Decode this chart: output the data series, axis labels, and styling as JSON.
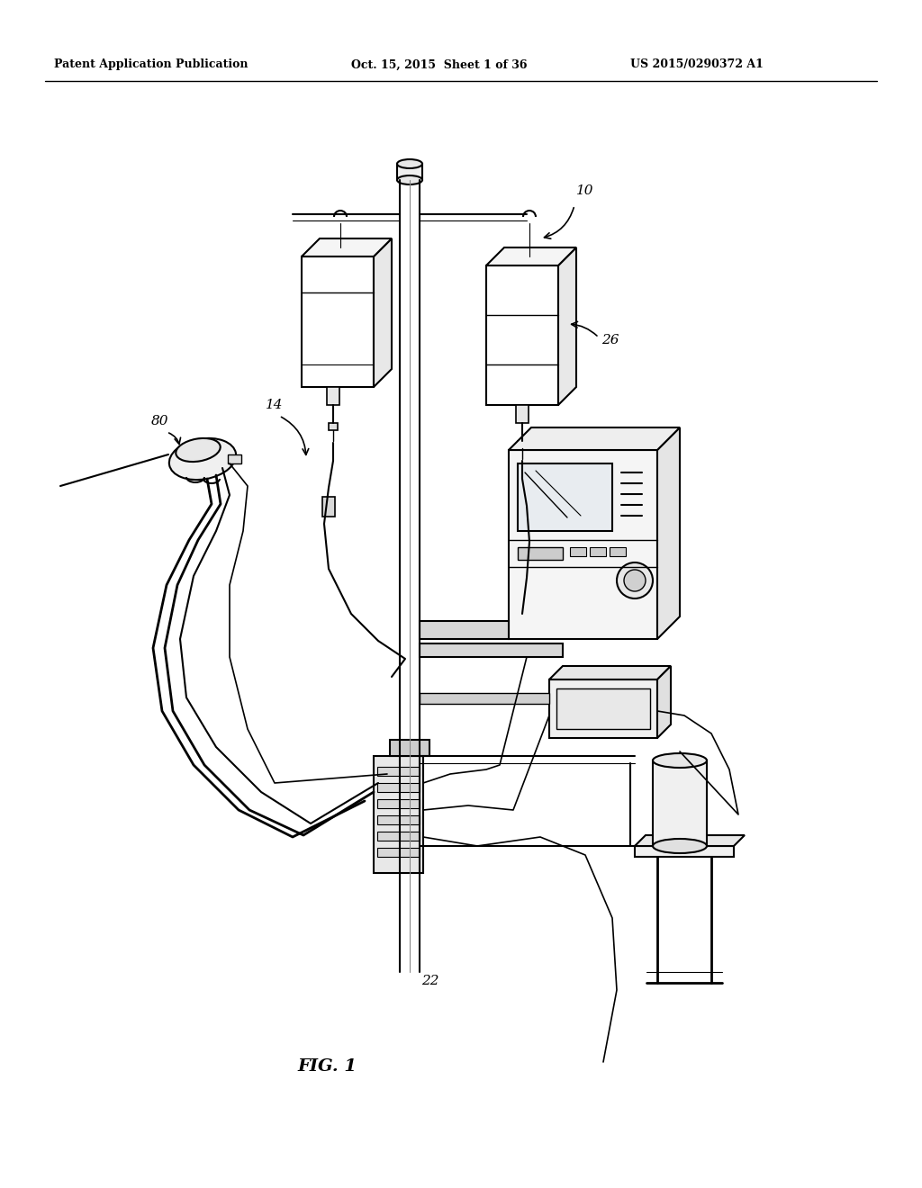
{
  "bg_color": "#ffffff",
  "text_color": "#000000",
  "header_left": "Patent Application Publication",
  "header_center": "Oct. 15, 2015  Sheet 1 of 36",
  "header_right": "US 2015/0290372 A1",
  "fig_label": "FIG. 1",
  "label_10": "10",
  "label_14": "14",
  "label_22": "22",
  "label_26": "26",
  "label_80": "80",
  "line_color": "#000000",
  "line_width": 1.5,
  "fig_width": 10.24,
  "fig_height": 13.2
}
